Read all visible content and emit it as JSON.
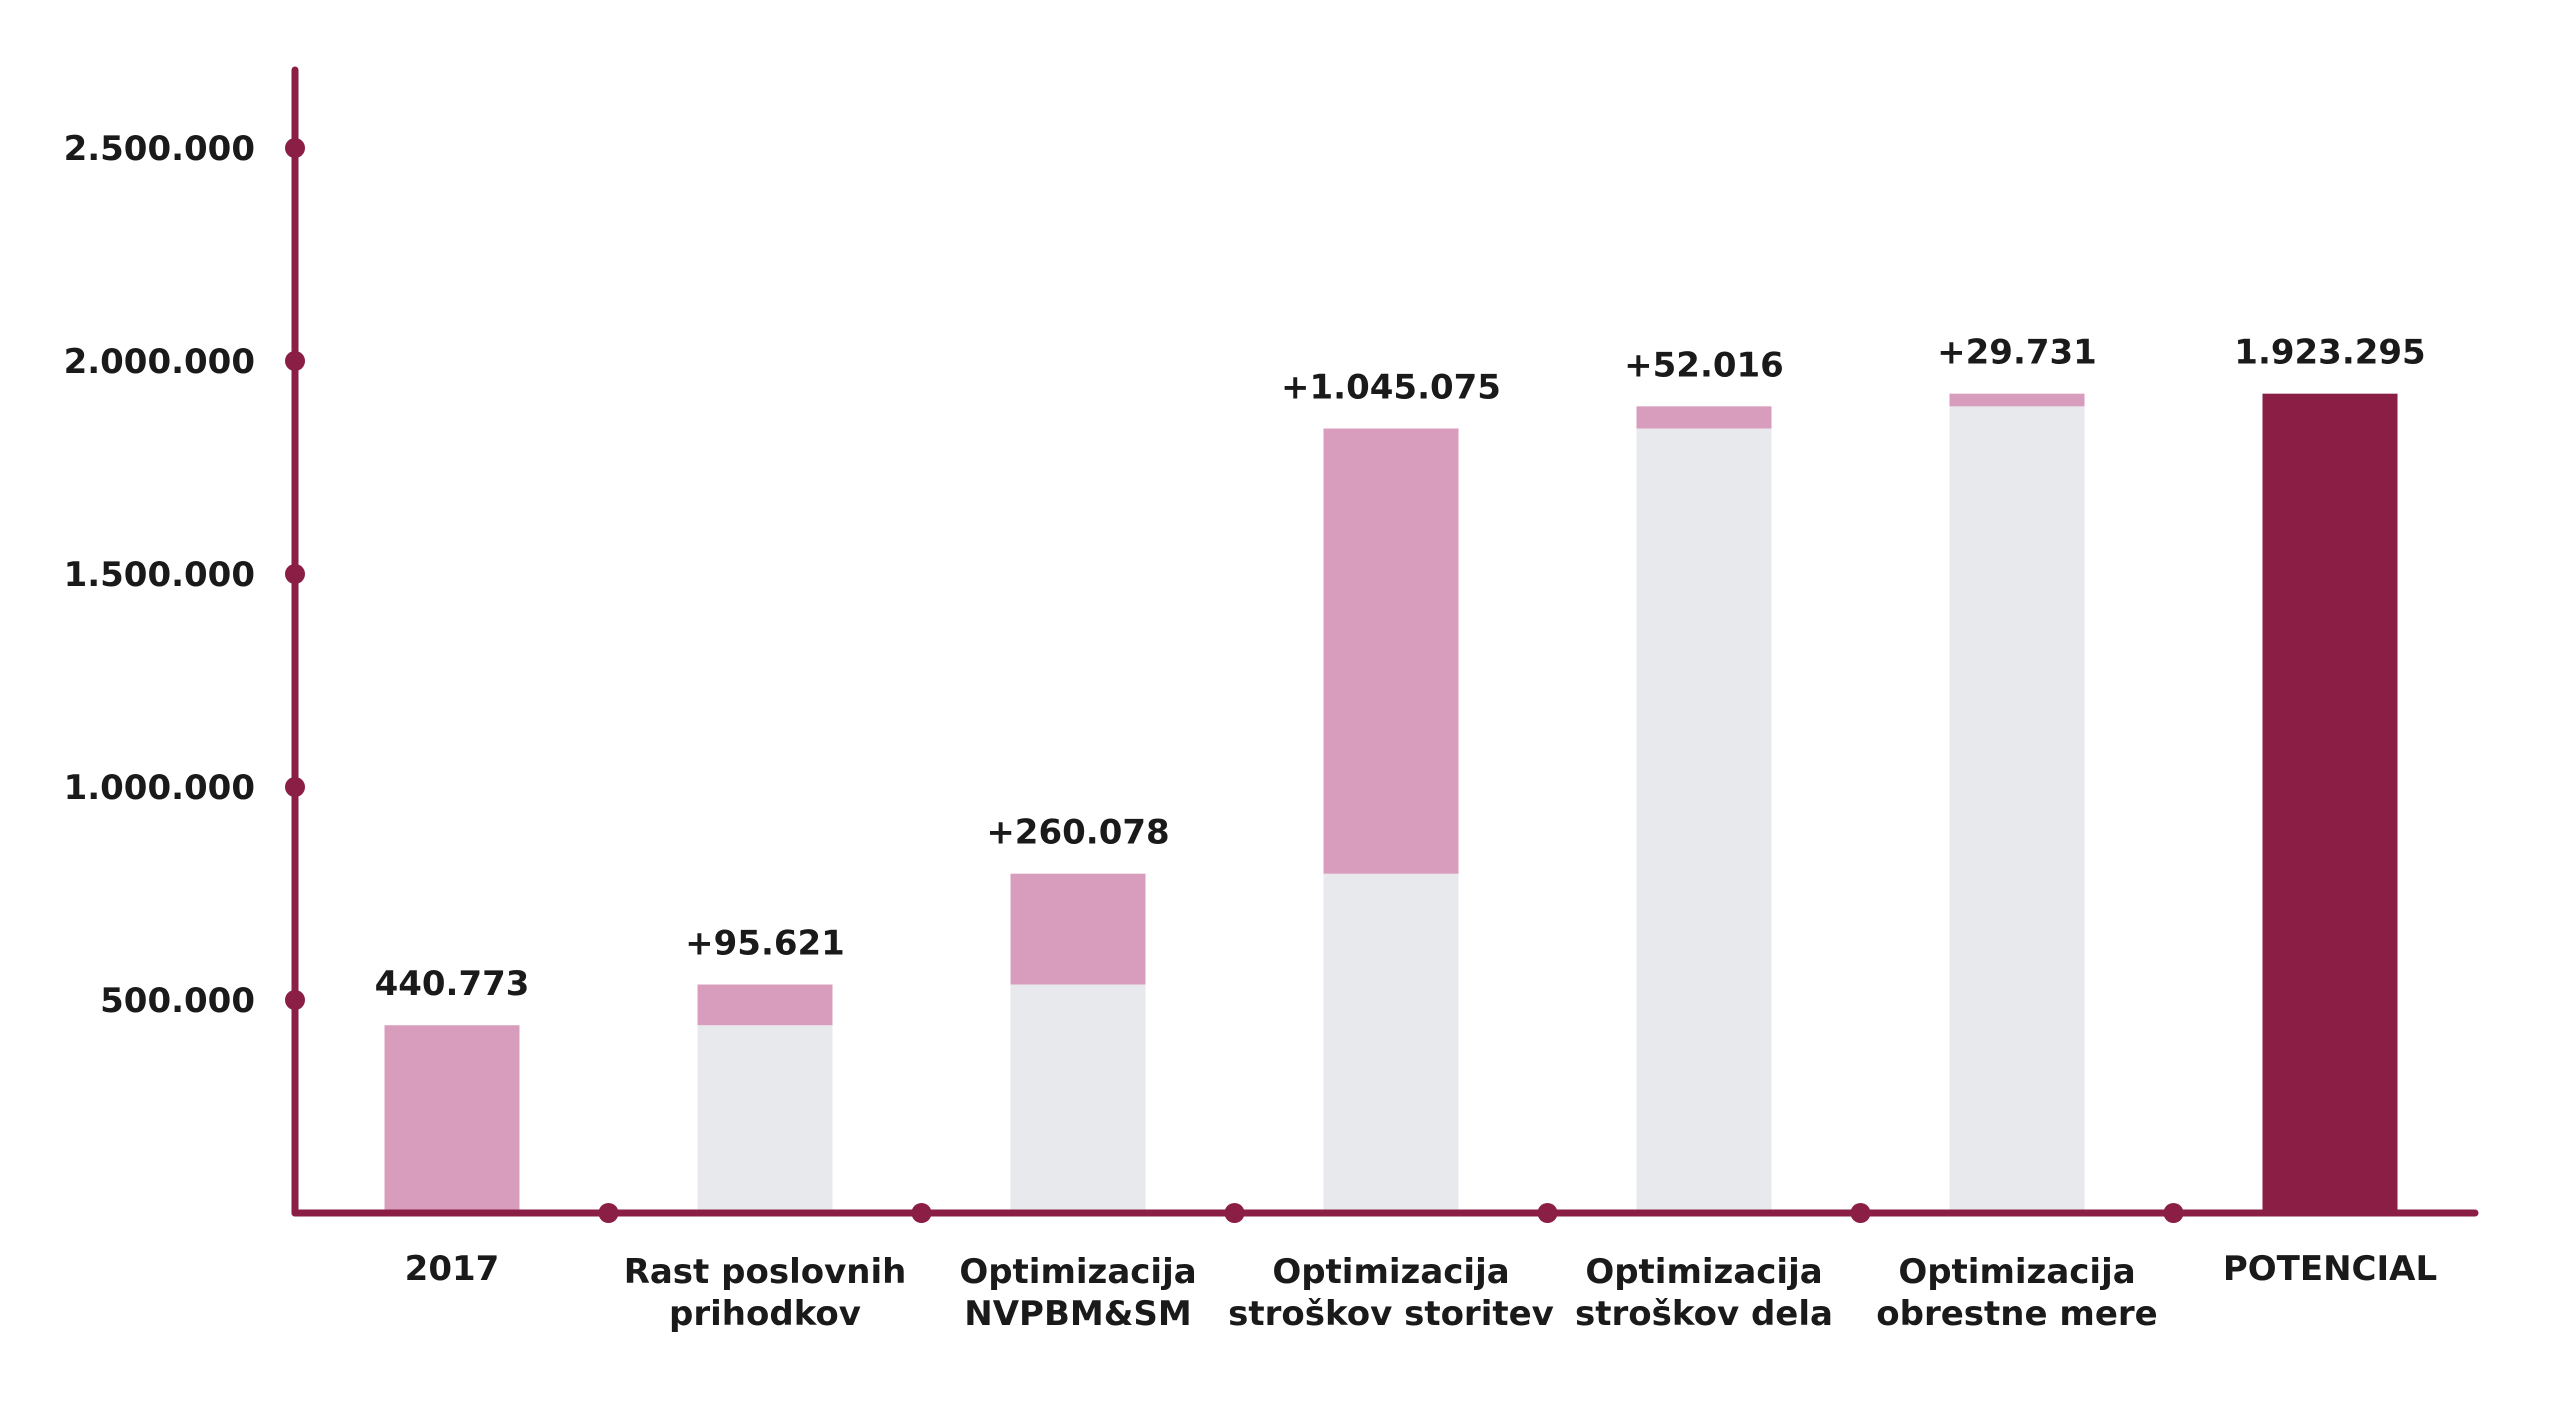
{
  "chart_data": {
    "type": "bar",
    "subtype": "waterfall",
    "title": "",
    "xlabel": "",
    "ylabel": "",
    "ylim": [
      0,
      2700000
    ],
    "yticks": [
      500000,
      1000000,
      1500000,
      2000000,
      2500000
    ],
    "ytick_labels": [
      "500.000",
      "1.000.000",
      "1.500.000",
      "2.000.000",
      "2.500.000"
    ],
    "grid": false,
    "legend": "none",
    "categories": [
      [
        "2017"
      ],
      [
        "Rast poslovnih",
        "prihodkov"
      ],
      [
        "Optimizacija",
        "NVPBM&SM"
      ],
      [
        "Optimizacija",
        "stroškov storitev"
      ],
      [
        "Optimizacija",
        "stroškov dela"
      ],
      [
        "Optimizacija",
        "obrestne mere"
      ],
      [
        "POTENCIAL"
      ]
    ],
    "bars": [
      {
        "base": 0,
        "increment": 440773,
        "label": "440.773",
        "kind": "start"
      },
      {
        "base": 440773,
        "increment": 95621,
        "label": "+95.621",
        "kind": "delta"
      },
      {
        "base": 536394,
        "increment": 260078,
        "label": "+260.078",
        "kind": "delta"
      },
      {
        "base": 796472,
        "increment": 1045075,
        "label": "+1.045.075",
        "kind": "delta"
      },
      {
        "base": 1841547,
        "increment": 52016,
        "label": "+52.016",
        "kind": "delta"
      },
      {
        "base": 1893563,
        "increment": 29731,
        "label": "+29.731",
        "kind": "delta"
      },
      {
        "base": 0,
        "increment": 1923295,
        "label": "1.923.295",
        "kind": "total"
      }
    ],
    "colors": {
      "axis": "#8a1e45",
      "base": "#e8e9ec",
      "increment": "#d89dbd",
      "total": "#8a1e45"
    }
  }
}
